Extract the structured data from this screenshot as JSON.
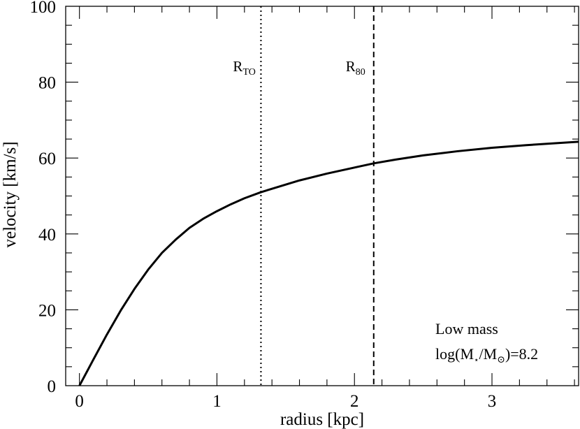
{
  "chart_data": {
    "type": "line",
    "xlabel": "radius [kpc]",
    "ylabel": "velocity [km/s]",
    "xlim": [
      -0.1,
      3.63
    ],
    "ylim": [
      0,
      100
    ],
    "x_ticks": [
      {
        "value": 0,
        "label": "0"
      },
      {
        "value": 1,
        "label": "1"
      },
      {
        "value": 2,
        "label": "2"
      },
      {
        "value": 3,
        "label": "3"
      }
    ],
    "y_ticks": [
      {
        "value": 0,
        "label": "0"
      },
      {
        "value": 20,
        "label": "20"
      },
      {
        "value": 40,
        "label": "40"
      },
      {
        "value": 60,
        "label": "60"
      },
      {
        "value": 80,
        "label": "80"
      },
      {
        "value": 100,
        "label": "100"
      }
    ],
    "x_minor_step": 0.2,
    "y_minor_step": 5,
    "grid": false,
    "series": [
      {
        "color": "#000000",
        "x": [
          0.0,
          0.1,
          0.2,
          0.3,
          0.4,
          0.5,
          0.6,
          0.7,
          0.8,
          0.9,
          1.0,
          1.1,
          1.2,
          1.32,
          1.4,
          1.6,
          1.8,
          2.0,
          2.14,
          2.3,
          2.5,
          2.75,
          3.0,
          3.25,
          3.5,
          3.63
        ],
        "y": [
          0.0,
          6.8,
          13.5,
          19.8,
          25.5,
          30.6,
          35.0,
          38.5,
          41.6,
          44.0,
          46.0,
          47.8,
          49.4,
          51.0,
          51.9,
          54.1,
          55.9,
          57.5,
          58.6,
          59.6,
          60.7,
          61.8,
          62.7,
          63.4,
          64.0,
          64.3
        ]
      }
    ],
    "reference_lines": [
      {
        "x": 1.32,
        "style": "dotted",
        "label_main": "R",
        "label_sub": "TO"
      },
      {
        "x": 2.14,
        "style": "dashed",
        "label_main": "R",
        "label_sub": "80"
      }
    ],
    "annotation": {
      "line1": "Low mass",
      "line2_prefix": "log(M",
      "star": "⋆",
      "line2_mid": "/M",
      "sun": "⊙",
      "line2_suffix": ")=8.2"
    }
  }
}
